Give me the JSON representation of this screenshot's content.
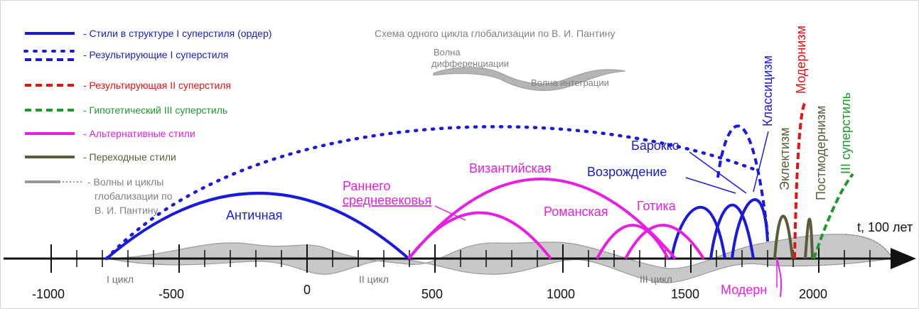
{
  "legend": [
    {
      "label": "- Стили в структуре I суперстиля (ордер)",
      "color": "#1a1adc",
      "style": "solid"
    },
    {
      "label": "- Результирующие I суперстиля",
      "color": "#1a1adc",
      "style": "dotted-dashed"
    },
    {
      "label": "- Результирующая II суперстиля",
      "color": "#e81010",
      "style": "dashed"
    },
    {
      "label": "- Гипотетический III суперстиль",
      "color": "#1c9a2a",
      "style": "dashed"
    },
    {
      "label": "- Альтернативные стили",
      "color": "#e81ee0",
      "style": "solid"
    },
    {
      "label": "- Переходные стили",
      "color": "#5c5a3a",
      "style": "solid"
    },
    {
      "label": "- Волны и циклы",
      "label_2": "глобализации по",
      "label_3": "В. И. Пантину",
      "color": "#9a9a9a",
      "style": "solid-dotted"
    }
  ],
  "scheme": {
    "title": "Схема одного цикла глобализации по В. И. Пантину",
    "wave_diff": "Волна",
    "wave_diff_2": "дифференциации",
    "wave_integ": "Волна интеграции"
  },
  "axis": {
    "label": "t, 100 лет",
    "ticks": [
      "-1000",
      "-500",
      "0",
      "500",
      "1000",
      "1500",
      "2000"
    ],
    "cycles": [
      "I цикл",
      "II цикл",
      "III цикл"
    ]
  },
  "styles": {
    "antique": "Античная",
    "early_medieval": "Раннего",
    "early_medieval_2": "средневековья",
    "byzantine": "Византийская",
    "romanesque": "Романская",
    "gothic": "Готика",
    "renaissance": "Возрождение",
    "baroque": "Барокко",
    "classicism": "Классицизм",
    "eclecticism": "Эклектизм",
    "modernism": "Модернизм",
    "postmodernism": "Постмодернизм",
    "third_superstyle": "III суперстиль",
    "modern": "Модерн"
  },
  "colors": {
    "blue": "#1a1adc",
    "magenta": "#e81ee0",
    "red": "#e81010",
    "green": "#1c9a2a",
    "olive": "#5c5a3a",
    "gray": "#9a9a9a",
    "wave_fill": "#c8c8c8"
  }
}
